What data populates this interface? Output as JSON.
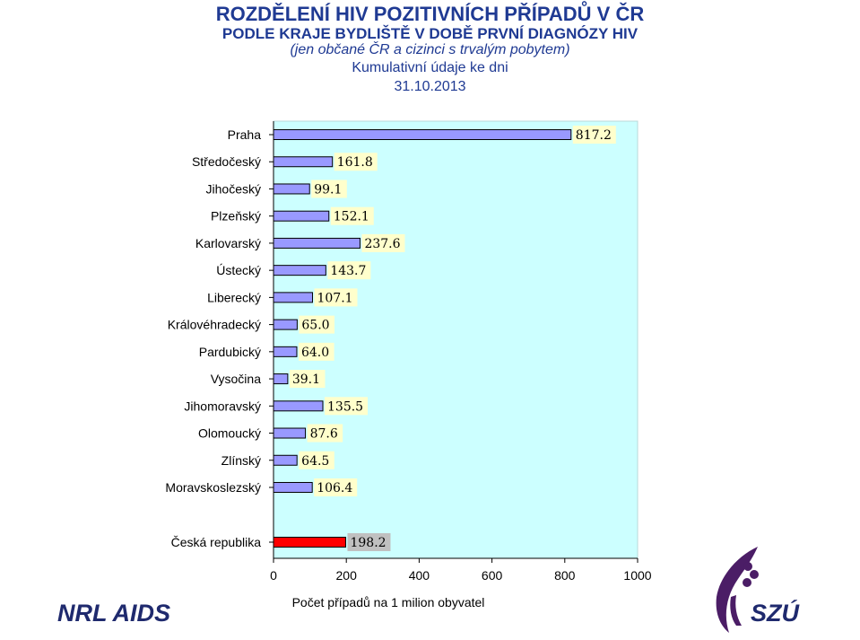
{
  "header": {
    "title": "ROZDĚLENÍ HIV POZITIVNÍCH PŘÍPADŮ V ČR",
    "subtitle": "PODLE KRAJE BYDLIŠTĚ V DOBĚ PRVNÍ DIAGNÓZY HIV",
    "note": "(jen občané ČR a cizinci s trvalým pobytem)",
    "cumulative": "Kumulativní údaje ke dni",
    "date": "31.10.2013"
  },
  "colors": {
    "plot_bg": "#ccffff",
    "bar_fill": "#9999ff",
    "total_bar_fill": "#ff0000",
    "label_bg": "#ffffcc",
    "total_label_bg": "#c0c0c0",
    "title": "#1f3a93",
    "logo_purple": "#4b1d66",
    "logo_navy": "#1f2a6e"
  },
  "chart_data": {
    "type": "bar",
    "orientation": "horizontal",
    "categories": [
      "Praha",
      "Středočeský",
      "Jihočeský",
      "Plzeňský",
      "Karlovarský",
      "Ústecký",
      "Liberecký",
      "Královéhradecký",
      "Pardubický",
      "Vysočina",
      "Jihomoravský",
      "Olomoucký",
      "Zlínský",
      "Moravskoslezský"
    ],
    "values": [
      817.2,
      161.8,
      99.1,
      152.1,
      237.6,
      143.7,
      107.1,
      65.0,
      64.0,
      39.1,
      135.5,
      87.6,
      64.5,
      106.4
    ],
    "value_labels": [
      "817.2",
      "161.8",
      "99.1",
      "152.1",
      "237.6",
      "143.7",
      "107.1",
      "65.0",
      "64.0",
      "39.1",
      "135.5",
      "87.6",
      "64.5",
      "106.4"
    ],
    "total": {
      "category": "Česká republika",
      "value": 198.2,
      "value_label": "198.2"
    },
    "xlabel": "Počet případů na 1 milion obyvatel",
    "xlim": [
      0,
      1000
    ],
    "xticks": [
      "0",
      "200",
      "400",
      "600",
      "800",
      "1000"
    ],
    "grid": false,
    "legend": "none"
  },
  "logos": {
    "left": "NRL AIDS",
    "right": "SZÚ"
  }
}
